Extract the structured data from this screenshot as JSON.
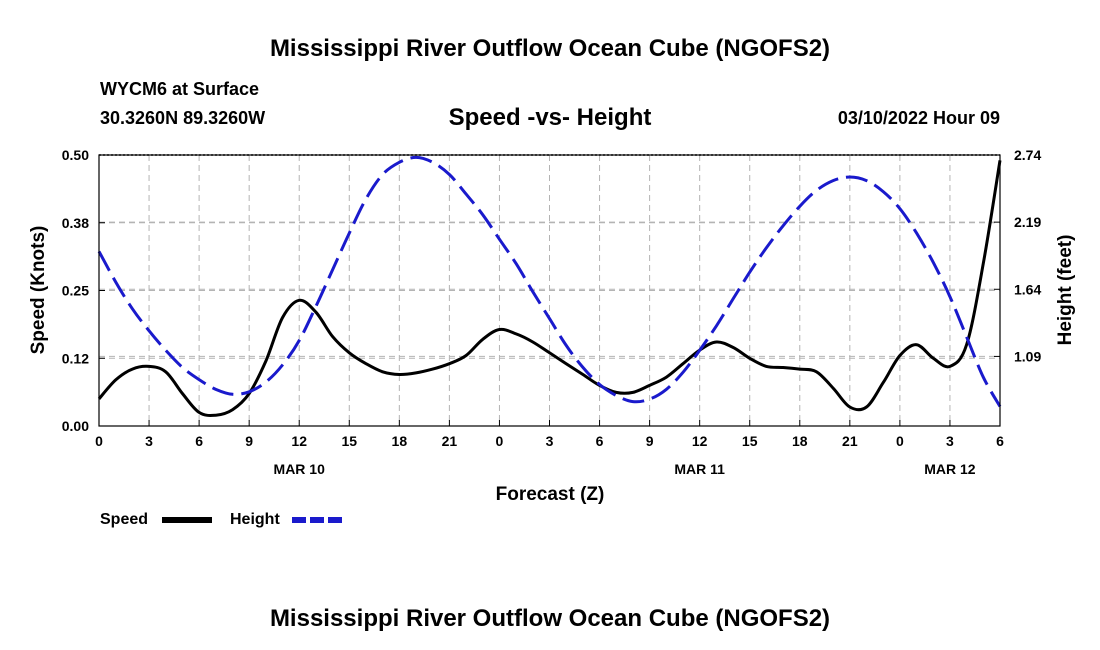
{
  "header": {
    "title": "Mississippi River Outflow Ocean Cube (NGOFS2)",
    "station": "WYCM6 at Surface",
    "coordinates": "30.3260N  89.3260W",
    "datetime": "03/10/2022 Hour 09"
  },
  "footer": {
    "title": "Mississippi River Outflow Ocean Cube (NGOFS2)"
  },
  "colors": {
    "speed": "#000000",
    "height": "#1a1acc",
    "grid": "#b4b4b4"
  },
  "chart_data": {
    "type": "line",
    "title": "Speed -vs- Height",
    "xlabel": "Forecast (Z)",
    "ylabel": "Speed (Knots)",
    "y2label": "Height (feet)",
    "xlim": [
      0,
      54
    ],
    "ylim": [
      0,
      0.5
    ],
    "y2lim": [
      0.52,
      2.74
    ],
    "x_ticks": [
      0,
      3,
      6,
      9,
      12,
      15,
      18,
      21,
      24,
      27,
      30,
      33,
      36,
      39,
      42,
      45,
      48,
      51,
      54
    ],
    "x_tick_labels": [
      "0",
      "3",
      "6",
      "9",
      "12",
      "15",
      "18",
      "21",
      "0",
      "3",
      "6",
      "9",
      "12",
      "15",
      "18",
      "21",
      "0",
      "3",
      "6"
    ],
    "date_labels": [
      {
        "x": 12,
        "label": "MAR 10"
      },
      {
        "x": 36,
        "label": "MAR 11"
      },
      {
        "x": 51,
        "label": "MAR 12"
      }
    ],
    "y_ticks": [
      0.0,
      0.125,
      0.25,
      0.375,
      0.5
    ],
    "y_tick_labels": [
      "0.00",
      "0.12",
      "0.25",
      "0.38",
      "0.50"
    ],
    "y2_ticks": [
      1.09,
      1.64,
      2.19,
      2.74
    ],
    "y2_tick_labels": [
      "1.09",
      "1.64",
      "2.19",
      "2.74"
    ],
    "grid": true,
    "series": [
      {
        "name": "Speed",
        "axis": "left",
        "style": "solid",
        "x": [
          0,
          1,
          2,
          3,
          4,
          5,
          6,
          7,
          8,
          9,
          10,
          11,
          12,
          13,
          14,
          15,
          16,
          17,
          18,
          19,
          20,
          21,
          22,
          23,
          24,
          25,
          26,
          27,
          28,
          29,
          30,
          31,
          32,
          33,
          34,
          35,
          36,
          37,
          38,
          39,
          40,
          41,
          42,
          43,
          44,
          45,
          46,
          47,
          48,
          49,
          50,
          51,
          52,
          53,
          54
        ],
        "values": [
          0.05,
          0.085,
          0.105,
          0.11,
          0.1,
          0.06,
          0.025,
          0.02,
          0.03,
          0.06,
          0.12,
          0.2,
          0.232,
          0.21,
          0.165,
          0.135,
          0.115,
          0.1,
          0.095,
          0.098,
          0.105,
          0.115,
          0.13,
          0.16,
          0.178,
          0.17,
          0.155,
          0.135,
          0.115,
          0.095,
          0.075,
          0.062,
          0.062,
          0.075,
          0.09,
          0.115,
          0.14,
          0.155,
          0.145,
          0.125,
          0.11,
          0.108,
          0.105,
          0.1,
          0.07,
          0.035,
          0.035,
          0.08,
          0.13,
          0.15,
          0.125,
          0.11,
          0.15,
          0.3,
          0.49
        ]
      },
      {
        "name": "Height",
        "axis": "right",
        "style": "dashed",
        "x": [
          0,
          1,
          2,
          3,
          4,
          5,
          6,
          7,
          8,
          9,
          10,
          11,
          12,
          13,
          14,
          15,
          16,
          17,
          18,
          19,
          20,
          21,
          22,
          23,
          24,
          25,
          26,
          27,
          28,
          29,
          30,
          31,
          32,
          33,
          34,
          35,
          36,
          37,
          38,
          39,
          40,
          41,
          42,
          43,
          44,
          45,
          46,
          47,
          48,
          49,
          50,
          51,
          52,
          53,
          54
        ],
        "values": [
          1.95,
          1.7,
          1.48,
          1.3,
          1.14,
          1.0,
          0.9,
          0.82,
          0.78,
          0.8,
          0.88,
          1.02,
          1.22,
          1.5,
          1.8,
          2.1,
          2.38,
          2.58,
          2.68,
          2.72,
          2.68,
          2.58,
          2.42,
          2.25,
          2.05,
          1.85,
          1.62,
          1.4,
          1.18,
          1.0,
          0.86,
          0.77,
          0.72,
          0.74,
          0.82,
          0.96,
          1.14,
          1.34,
          1.56,
          1.78,
          1.98,
          2.16,
          2.32,
          2.45,
          2.53,
          2.56,
          2.53,
          2.44,
          2.3,
          2.1,
          1.86,
          1.58,
          1.25,
          0.92,
          0.68
        ]
      }
    ],
    "legend": {
      "placement": "bottom-left",
      "entries": [
        "Speed",
        "Height"
      ]
    }
  }
}
